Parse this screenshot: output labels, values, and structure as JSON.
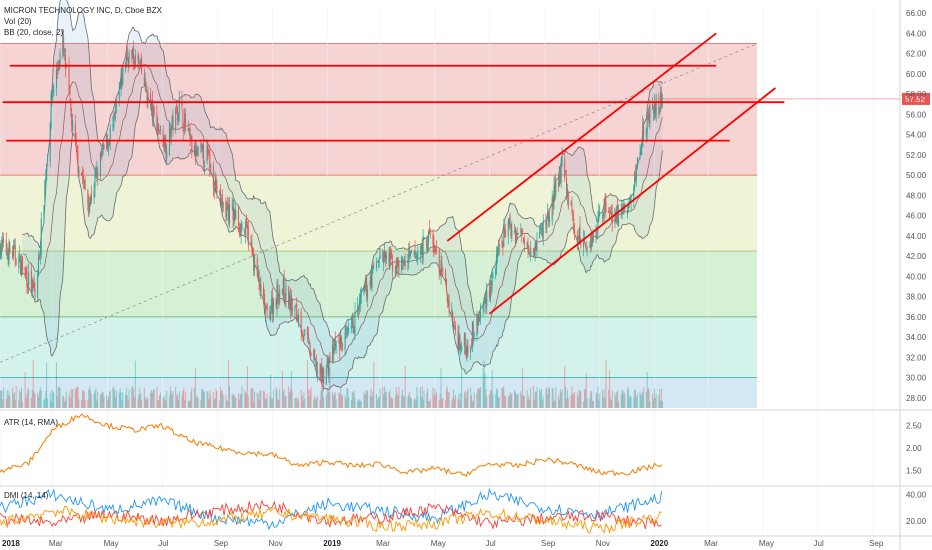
{
  "header": {
    "title": "MICRON TECHNOLOGY INC, D, Cboe BZX",
    "vol_label": "Vol (20)",
    "bb_label": "BB (20, close, 2)"
  },
  "atr_panel": {
    "label": "ATR (14, RMA)"
  },
  "dmi_panel": {
    "label": "DMI (14, 14)"
  },
  "colors": {
    "up": "#26a69a",
    "down": "#ef5350",
    "bb": "#6b6b6b",
    "trend": "#ff0000",
    "atr": "#f57c00",
    "dmi_plus": "#2196f3",
    "dmi_minus": "#f44336",
    "adx": "#ff9800",
    "price_tag": "#ef5350"
  },
  "chart_data": [
    {
      "type": "candlestick",
      "title": "MICRON TECHNOLOGY INC, D, Cboe BZX",
      "last_price": "57.52",
      "ylim": [
        27,
        66.5
      ],
      "y_ticks": [
        "66.00",
        "64.00",
        "62.00",
        "60.00",
        "58.00",
        "56.00",
        "54.00",
        "52.00",
        "50.00",
        "48.00",
        "46.00",
        "44.00",
        "42.00",
        "40.00",
        "38.00",
        "36.00",
        "34.00",
        "32.00",
        "30.00",
        "28.00"
      ],
      "x_ticks": [
        "2018",
        "Mar",
        "May",
        "Jul",
        "Sep",
        "Nov",
        "2019",
        "Mar",
        "May",
        "Jul",
        "Sep",
        "Nov",
        "2020",
        "Mar",
        "May",
        "Jul",
        "Sep"
      ],
      "bold_ticks": [
        "2018",
        "2019",
        "2020"
      ],
      "x_range": [
        "2018-01-01",
        "2020-10-01"
      ],
      "price_path": [
        [
          "2018-01-01",
          43
        ],
        [
          "2018-01-20",
          42
        ],
        [
          "2018-02-10",
          38
        ],
        [
          "2018-02-28",
          58
        ],
        [
          "2018-03-12",
          63
        ],
        [
          "2018-03-25",
          53
        ],
        [
          "2018-04-10",
          47
        ],
        [
          "2018-04-25",
          52
        ],
        [
          "2018-05-08",
          55
        ],
        [
          "2018-05-22",
          62
        ],
        [
          "2018-06-05",
          61
        ],
        [
          "2018-06-20",
          56
        ],
        [
          "2018-07-05",
          53
        ],
        [
          "2018-07-20",
          57
        ],
        [
          "2018-08-05",
          52
        ],
        [
          "2018-08-20",
          52
        ],
        [
          "2018-09-05",
          47
        ],
        [
          "2018-09-20",
          46
        ],
        [
          "2018-10-05",
          44
        ],
        [
          "2018-10-25",
          36
        ],
        [
          "2018-11-10",
          39
        ],
        [
          "2018-11-30",
          36
        ],
        [
          "2018-12-15",
          32
        ],
        [
          "2018-12-26",
          30
        ],
        [
          "2019-01-10",
          33
        ],
        [
          "2019-01-25",
          34
        ],
        [
          "2019-02-10",
          38
        ],
        [
          "2019-02-28",
          42
        ],
        [
          "2019-03-20",
          41
        ],
        [
          "2019-04-10",
          42
        ],
        [
          "2019-04-25",
          44
        ],
        [
          "2019-05-10",
          40
        ],
        [
          "2019-05-25",
          34
        ],
        [
          "2019-06-05",
          33
        ],
        [
          "2019-06-20",
          36
        ],
        [
          "2019-07-05",
          40
        ],
        [
          "2019-07-20",
          45
        ],
        [
          "2019-08-05",
          44
        ],
        [
          "2019-08-20",
          43
        ],
        [
          "2019-09-05",
          46
        ],
        [
          "2019-09-20",
          51
        ],
        [
          "2019-10-05",
          44
        ],
        [
          "2019-10-20",
          43
        ],
        [
          "2019-11-05",
          47
        ],
        [
          "2019-11-20",
          46
        ],
        [
          "2019-12-05",
          47
        ],
        [
          "2019-12-20",
          55
        ],
        [
          "2020-01-05",
          57
        ],
        [
          "2020-01-10",
          57.5
        ]
      ],
      "fib_levels": [
        63,
        50,
        42.5,
        36,
        30
      ]
    },
    {
      "type": "line",
      "title": "ATR (14, RMA)",
      "ylim": [
        1.2,
        2.8
      ],
      "y_ticks": [
        "2.50",
        "2.00",
        "1.50"
      ],
      "x_range": [
        "2018-01-01",
        "2020-10-01"
      ],
      "series": [
        {
          "values": [
            [
              "2018-01-01",
              1.5
            ],
            [
              "2018-02-01",
              1.65
            ],
            [
              "2018-03-01",
              2.4
            ],
            [
              "2018-04-01",
              2.75
            ],
            [
              "2018-05-01",
              2.5
            ],
            [
              "2018-06-01",
              2.4
            ],
            [
              "2018-07-01",
              2.5
            ],
            [
              "2018-08-01",
              2.15
            ],
            [
              "2018-09-01",
              2.0
            ],
            [
              "2018-10-01",
              1.9
            ],
            [
              "2018-11-01",
              1.85
            ],
            [
              "2018-12-01",
              1.6
            ],
            [
              "2019-01-01",
              1.7
            ],
            [
              "2019-02-01",
              1.6
            ],
            [
              "2019-03-01",
              1.65
            ],
            [
              "2019-04-01",
              1.45
            ],
            [
              "2019-05-01",
              1.55
            ],
            [
              "2019-06-01",
              1.4
            ],
            [
              "2019-07-01",
              1.65
            ],
            [
              "2019-08-01",
              1.6
            ],
            [
              "2019-09-01",
              1.75
            ],
            [
              "2019-10-01",
              1.65
            ],
            [
              "2019-11-01",
              1.45
            ],
            [
              "2019-12-01",
              1.45
            ],
            [
              "2020-01-01",
              1.6
            ],
            [
              "2020-01-10",
              1.65
            ]
          ]
        }
      ]
    },
    {
      "type": "line",
      "title": "DMI (14, 14)",
      "ylim": [
        10,
        45
      ],
      "y_ticks": [
        "40.00",
        "20.00"
      ],
      "x_range": [
        "2018-01-01",
        "2020-10-01"
      ],
      "series": [
        {
          "values": [
            [
              "2018-01-01",
              30
            ],
            [
              "2018-03-01",
              40
            ],
            [
              "2018-05-01",
              28
            ],
            [
              "2018-07-01",
              35
            ],
            [
              "2018-09-01",
              22
            ],
            [
              "2018-11-01",
              18
            ],
            [
              "2019-01-01",
              33
            ],
            [
              "2019-03-01",
              28
            ],
            [
              "2019-05-01",
              22
            ],
            [
              "2019-07-01",
              40
            ],
            [
              "2019-09-01",
              30
            ],
            [
              "2019-11-01",
              25
            ],
            [
              "2020-01-10",
              38
            ]
          ]
        },
        {
          "values": [
            [
              "2018-01-01",
              22
            ],
            [
              "2018-03-01",
              18
            ],
            [
              "2018-05-01",
              25
            ],
            [
              "2018-07-01",
              20
            ],
            [
              "2018-09-01",
              28
            ],
            [
              "2018-11-01",
              32
            ],
            [
              "2019-01-01",
              20
            ],
            [
              "2019-03-01",
              22
            ],
            [
              "2019-05-01",
              30
            ],
            [
              "2019-07-01",
              18
            ],
            [
              "2019-09-01",
              22
            ],
            [
              "2019-11-01",
              24
            ],
            [
              "2020-01-10",
              16
            ]
          ]
        },
        {
          "values": [
            [
              "2018-01-01",
              18
            ],
            [
              "2018-03-01",
              28
            ],
            [
              "2018-05-01",
              22
            ],
            [
              "2018-07-01",
              18
            ],
            [
              "2018-09-01",
              20
            ],
            [
              "2018-11-01",
              26
            ],
            [
              "2019-01-01",
              22
            ],
            [
              "2019-03-01",
              16
            ],
            [
              "2019-05-01",
              18
            ],
            [
              "2019-07-01",
              26
            ],
            [
              "2019-09-01",
              20
            ],
            [
              "2019-11-01",
              14
            ],
            [
              "2020-01-10",
              24
            ]
          ]
        }
      ]
    }
  ]
}
